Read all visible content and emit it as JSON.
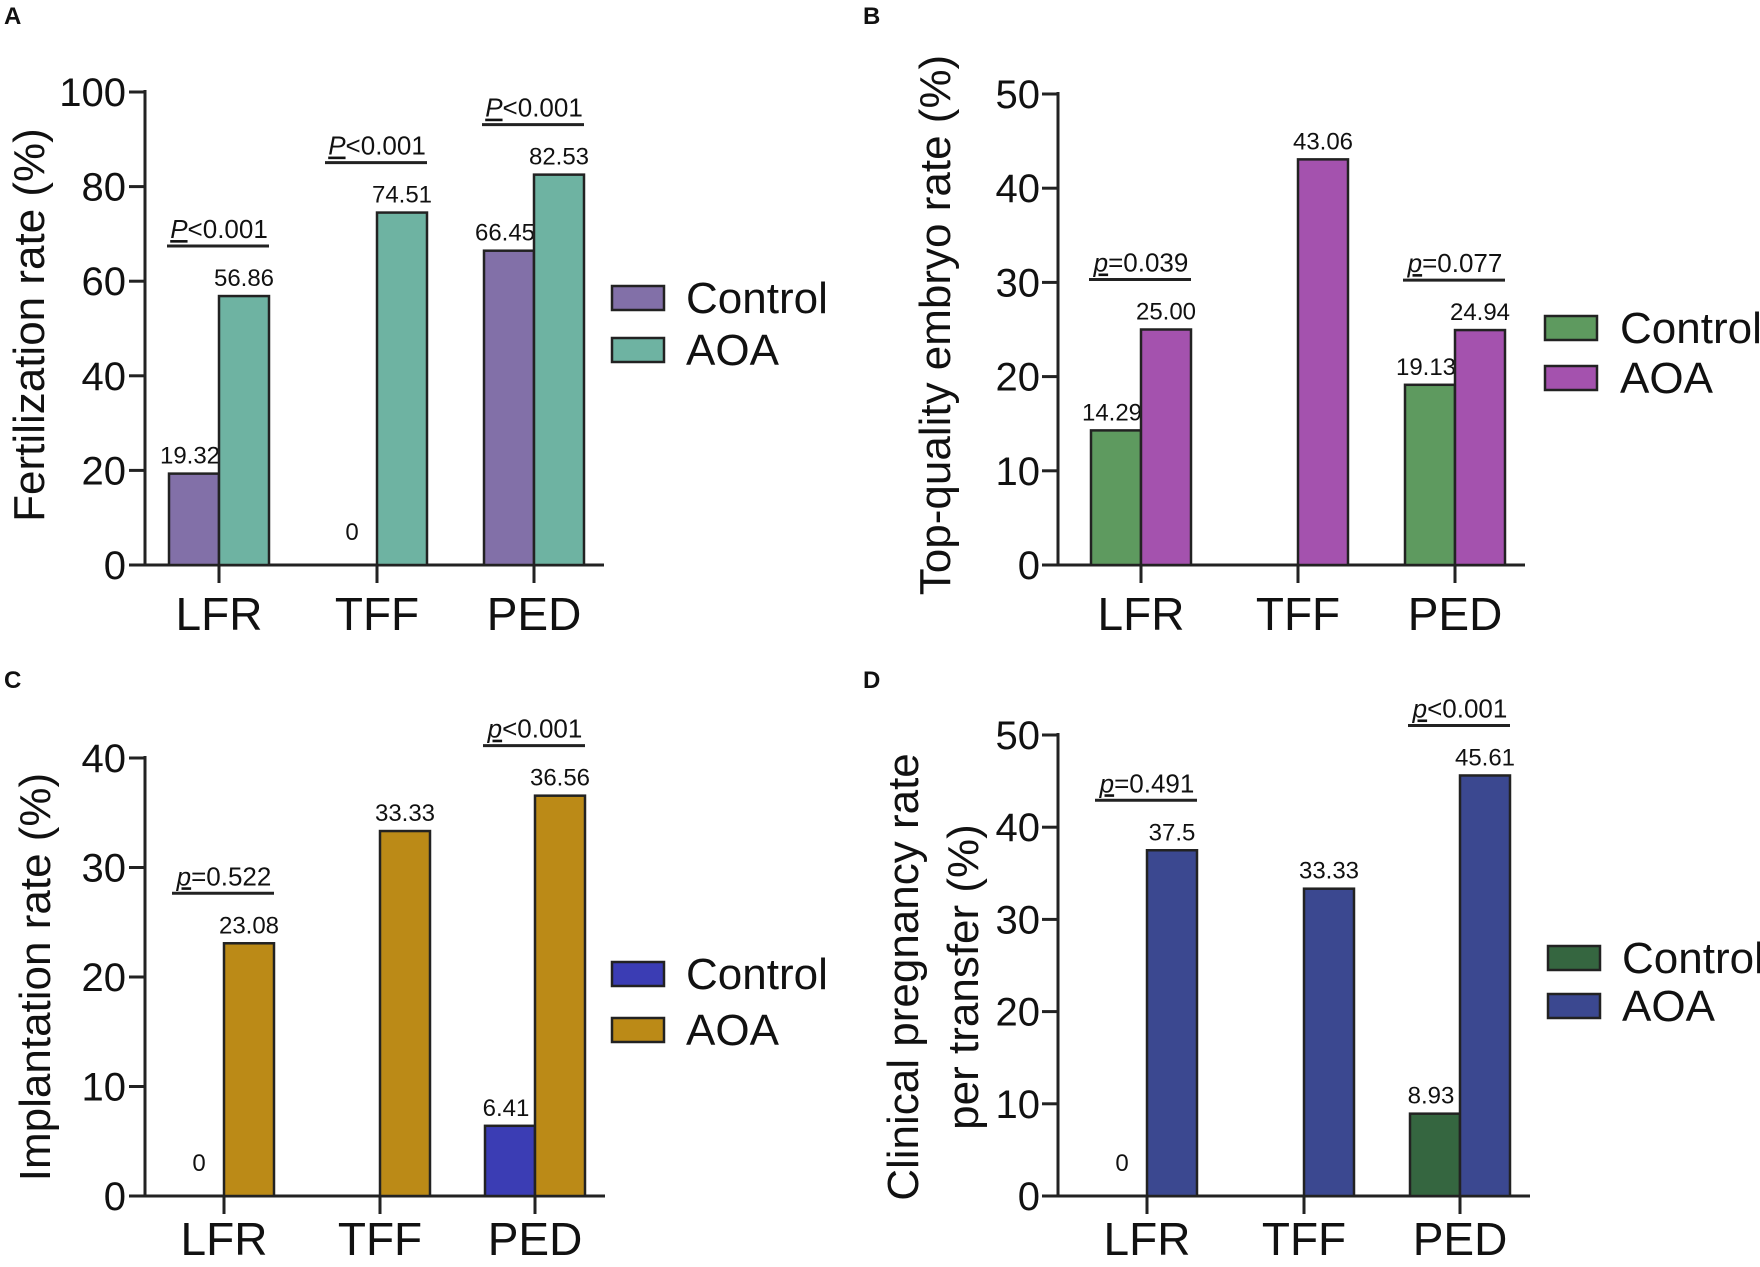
{
  "chart_data": [
    {
      "panel": "A",
      "type": "bar",
      "ylabel": "Fertilization rate (%)",
      "ylim": [
        0,
        100
      ],
      "yticks": [
        0,
        20,
        40,
        60,
        80,
        100
      ],
      "categories": [
        "LFR",
        "TFF",
        "PED"
      ],
      "series": [
        {
          "name": "Control",
          "color": "#8270a8",
          "values": [
            19.32,
            0,
            66.45
          ],
          "labels": [
            "19.32",
            "0",
            "66.45"
          ]
        },
        {
          "name": "AOA",
          "color": "#6eb3a2",
          "values": [
            56.86,
            74.51,
            82.53
          ],
          "labels": [
            "56.86",
            "74.51",
            "82.53"
          ]
        }
      ],
      "significance": [
        {
          "category": "LFR",
          "p_letter": "P",
          "rest": "<0.001"
        },
        {
          "category": "TFF",
          "p_letter": "P",
          "rest": "<0.001"
        },
        {
          "category": "PED",
          "p_letter": "P",
          "rest": "<0.001"
        }
      ]
    },
    {
      "panel": "B",
      "type": "bar",
      "ylabel": "Top-quality embryo rate (%)",
      "ylim": [
        0,
        50
      ],
      "yticks": [
        0,
        10,
        20,
        30,
        40,
        50
      ],
      "categories": [
        "LFR",
        "TFF",
        "PED"
      ],
      "series": [
        {
          "name": "Control",
          "color": "#5e9a5f",
          "values": [
            14.29,
            null,
            19.13
          ],
          "labels": [
            "14.29",
            "",
            "19.13"
          ]
        },
        {
          "name": "AOA",
          "color": "#a452ae",
          "values": [
            25.0,
            43.06,
            24.94
          ],
          "labels": [
            "25.00",
            "43.06",
            "24.94"
          ]
        }
      ],
      "significance": [
        {
          "category": "LFR",
          "p_letter": "p",
          "rest": "=0.039"
        },
        {
          "category": "PED",
          "p_letter": "p",
          "rest": "=0.077"
        }
      ]
    },
    {
      "panel": "C",
      "type": "bar",
      "ylabel": "Implantation rate (%)",
      "ylim": [
        0,
        40
      ],
      "yticks": [
        0,
        10,
        20,
        30,
        40
      ],
      "categories": [
        "LFR",
        "TFF",
        "PED"
      ],
      "series": [
        {
          "name": "Control",
          "color": "#3b3db4",
          "values": [
            0,
            null,
            6.41
          ],
          "labels": [
            "0",
            "",
            "6.41"
          ]
        },
        {
          "name": "AOA",
          "color": "#bb8a17",
          "values": [
            23.08,
            33.33,
            36.56
          ],
          "labels": [
            "23.08",
            "33.33",
            "36.56"
          ]
        }
      ],
      "significance": [
        {
          "category": "LFR",
          "p_letter": "p",
          "rest": "=0.522"
        },
        {
          "category": "PED",
          "p_letter": "p",
          "rest": "<0.001"
        }
      ]
    },
    {
      "panel": "D",
      "type": "bar",
      "ylabel_lines": [
        "Clinical pregnancy rate",
        "per transfer (%)"
      ],
      "ylim": [
        0,
        50
      ],
      "yticks": [
        0,
        10,
        20,
        30,
        40,
        50
      ],
      "categories": [
        "LFR",
        "TFF",
        "PED"
      ],
      "series": [
        {
          "name": "Control",
          "color": "#356640",
          "values": [
            0,
            null,
            8.93
          ],
          "labels": [
            "0",
            "",
            "8.93"
          ]
        },
        {
          "name": "AOA",
          "color": "#3b4890",
          "values": [
            37.5,
            33.33,
            45.61
          ],
          "labels": [
            "37.5",
            "33.33",
            "45.61"
          ]
        }
      ],
      "significance": [
        {
          "category": "LFR",
          "p_letter": "p",
          "rest": "=0.491"
        },
        {
          "category": "PED",
          "p_letter": "p",
          "rest": "<0.001"
        }
      ]
    }
  ]
}
